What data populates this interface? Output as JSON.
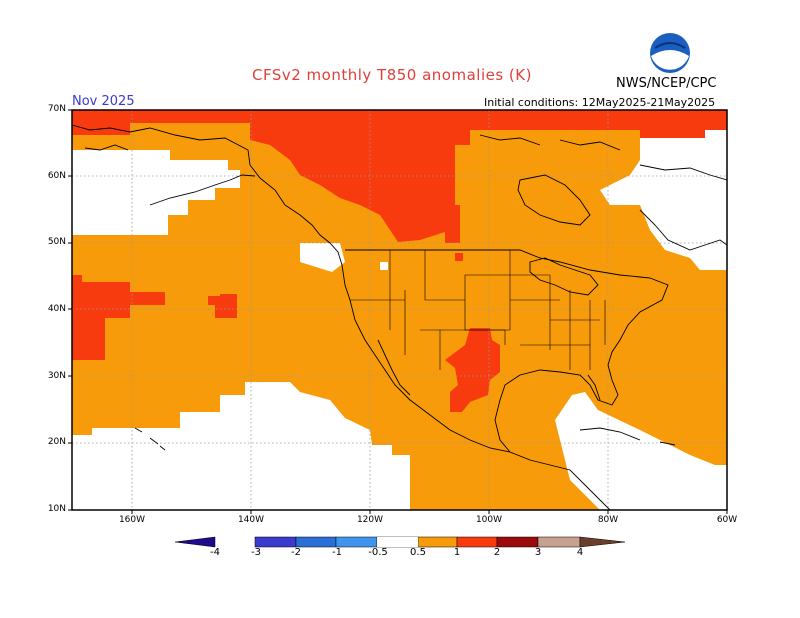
{
  "header": {
    "title": "CFSv2 monthly T850 anomalies (K)",
    "agency": "NWS/NCEP/CPC",
    "logo_text": "NOAA",
    "month": "Nov 2025",
    "initial_conditions": "Initial conditions: 12May2025-21May2025"
  },
  "axes": {
    "lat_labels": [
      "70N",
      "60N",
      "50N",
      "40N",
      "30N",
      "20N",
      "10N"
    ],
    "lon_labels": [
      "160W",
      "140W",
      "120W",
      "100W",
      "80W",
      "60W"
    ]
  },
  "colorbar": {
    "labels": [
      "-4",
      "-3",
      "-2",
      "-1",
      "-0.5",
      "0.5",
      "1",
      "2",
      "3",
      "4"
    ],
    "colors": [
      "#1e0a8c",
      "#3a3acd",
      "#2a6fd6",
      "#3f94ee",
      "#7ab8f5",
      "#ffffff",
      "#f89b0a",
      "#f73b0f",
      "#9b0a0a",
      "#c7a090",
      "#6b3e2a"
    ]
  },
  "map_colors": {
    "weak_warm": "#f89b0a",
    "moderate_warm": "#f73b0f",
    "neutral": "#ffffff",
    "coast": "#000000",
    "grid": "#9a9a9a"
  }
}
